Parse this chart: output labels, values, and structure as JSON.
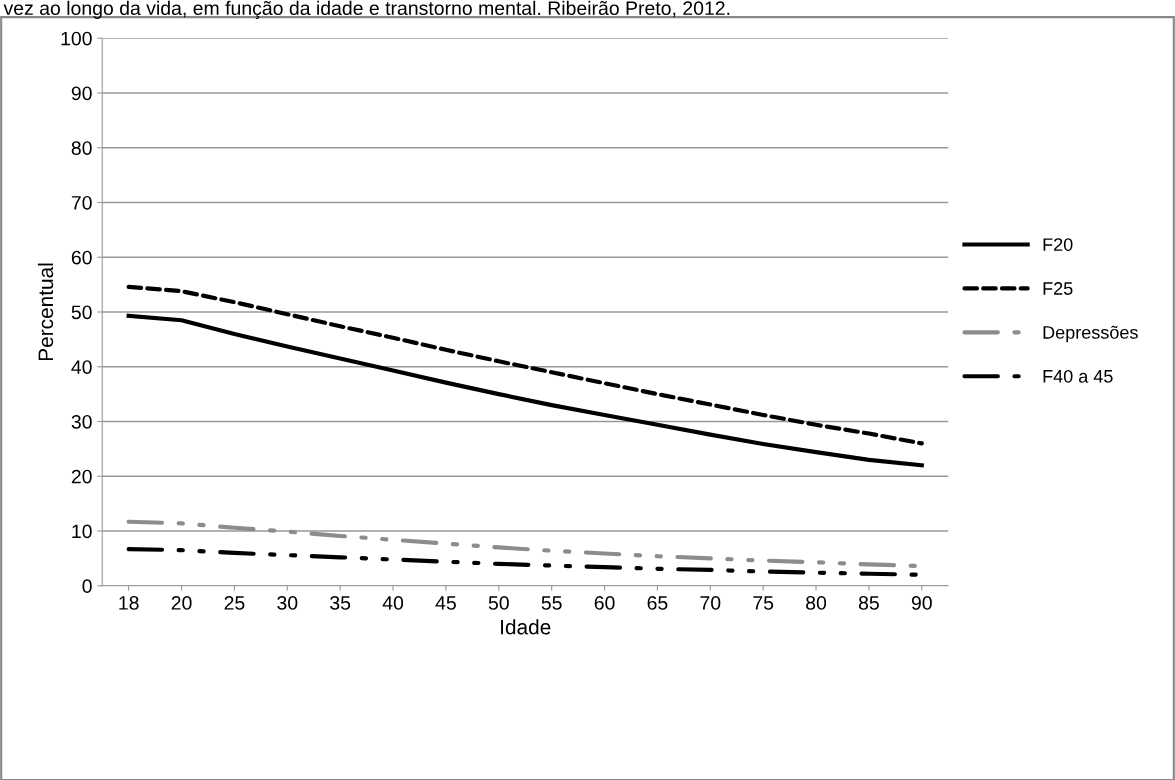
{
  "chart_data": {
    "type": "line",
    "title": "vez ao longo da vida, em função da idade e transtorno mental. Ribeirão Preto, 2012.",
    "xlabel": "Idade",
    "ylabel": "Percentual",
    "categories": [
      "18",
      "20",
      "25",
      "30",
      "35",
      "40",
      "45",
      "50",
      "55",
      "60",
      "65",
      "70",
      "75",
      "80",
      "85",
      "90"
    ],
    "ylim": [
      0,
      100
    ],
    "yticks": [
      0,
      10,
      20,
      30,
      40,
      50,
      60,
      70,
      80,
      90,
      100
    ],
    "grid": "y",
    "legend": "right",
    "marker": "none",
    "series": [
      {
        "name": "F20",
        "color": "#000000",
        "line_style": "solid",
        "values": [
          49.3,
          48.5,
          46.0,
          43.7,
          41.5,
          39.3,
          37.1,
          35.0,
          33.0,
          31.2,
          29.4,
          27.6,
          25.9,
          24.4,
          23.0,
          22.0
        ]
      },
      {
        "name": "F25",
        "color": "#000000",
        "line_style": "dashed",
        "values": [
          54.6,
          53.8,
          51.8,
          49.6,
          47.4,
          45.3,
          43.1,
          41.0,
          39.0,
          37.0,
          35.0,
          33.1,
          31.2,
          29.4,
          27.8,
          26.0
        ]
      },
      {
        "name": "Depressões",
        "color": "#8c8c8c",
        "line_style": "dashdot",
        "values": [
          11.7,
          11.4,
          10.6,
          9.9,
          9.1,
          8.4,
          7.7,
          7.0,
          6.4,
          5.9,
          5.4,
          5.0,
          4.6,
          4.3,
          3.9,
          3.6
        ]
      },
      {
        "name": "F40 a 45",
        "color": "#000000",
        "line_style": "dashdot",
        "values": [
          6.7,
          6.5,
          6.0,
          5.6,
          5.2,
          4.8,
          4.4,
          4.0,
          3.7,
          3.4,
          3.1,
          2.9,
          2.6,
          2.4,
          2.2,
          2.0
        ]
      }
    ]
  }
}
